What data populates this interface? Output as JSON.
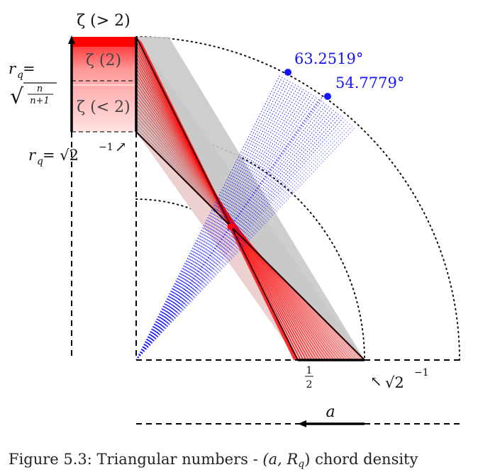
{
  "figure": {
    "caption_prefix": "Figure 5.3: Triangular numbers - ",
    "caption_math": "(a, R",
    "caption_math_sub": "q",
    "caption_suffix": ") chord density"
  },
  "labels": {
    "zeta_gt2": "ζ (> 2)",
    "zeta_2": "ζ (2)",
    "zeta_lt2": "ζ (< 2)",
    "rq_eq": "r",
    "rq_sub": "q",
    "rq_eq_sign": " =",
    "rq_sqrt_num": "n",
    "rq_sqrt_den": "n+1",
    "rq_sqrt2_prefix": "r",
    "rq_sqrt2_sub": "q",
    "rq_sqrt2_eq": " = √2",
    "rq_sqrt2_exp": "−1",
    "rq_sqrt2_arrow": "↗",
    "angle_top": "63.2519°",
    "angle_second": "54.7779°",
    "half_num": "1",
    "half_den": "2",
    "sqrt2_inv_arrow": "↖",
    "sqrt2_inv": "√2",
    "sqrt2_inv_exp": "−1",
    "axis_a": "a"
  },
  "colors": {
    "red": "#ff0000",
    "blue": "#1414ff",
    "grey_band": "#c8c8c8",
    "pink_fill": "#f3d4d4",
    "dark": "#111111"
  },
  "angles_deg": [
    63.2519,
    54.7779
  ]
}
